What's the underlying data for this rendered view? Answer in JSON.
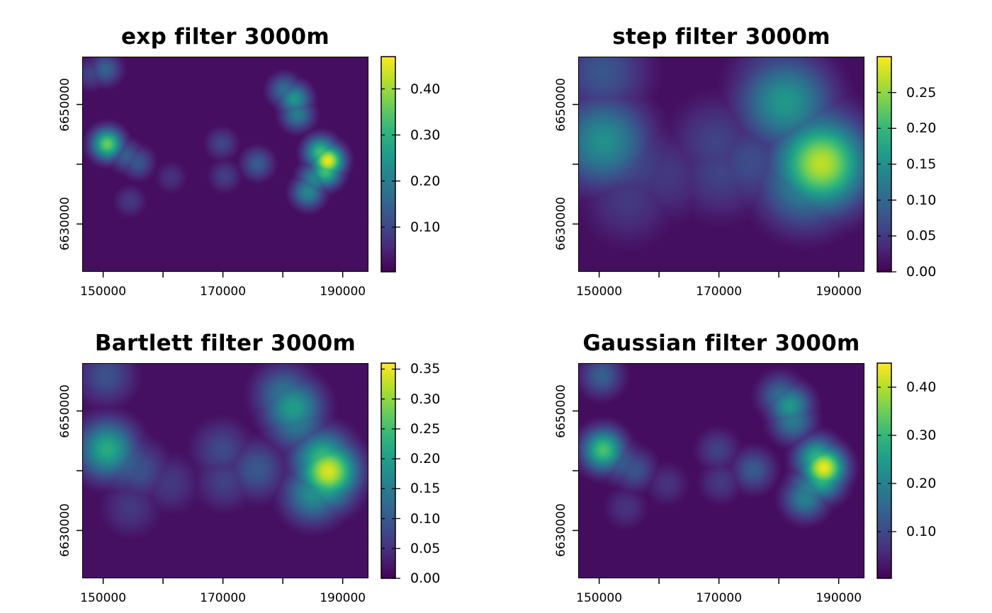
{
  "colors": {
    "viridis": [
      "#440154",
      "#482878",
      "#3e4a89",
      "#31688e",
      "#26828e",
      "#1f9e89",
      "#35b779",
      "#6ece58",
      "#b5de2b",
      "#fde725"
    ]
  },
  "chart_data": [
    {
      "type": "heatmap",
      "title": "exp filter 3000m",
      "x_ticks": [
        "150000",
        "170000",
        "190000"
      ],
      "x_tick_values": [
        150000,
        160000,
        170000,
        180000,
        190000
      ],
      "y_ticks": [
        "6630000",
        "6650000"
      ],
      "y_tick_values": [
        6630000,
        6640000,
        6650000
      ],
      "xlim": [
        146500,
        194300
      ],
      "ylim": [
        6622000,
        6658000
      ],
      "legend_ticks": [
        "0.40",
        "0.30",
        "0.20",
        "0.10"
      ],
      "legend_tick_values": [
        0.4,
        0.3,
        0.2,
        0.1
      ],
      "zlim": [
        0.003,
        0.47
      ],
      "sharpness": 1.0,
      "background_level": 0.02,
      "hotspots": [
        {
          "x": 187600,
          "y": 6640600,
          "value": 0.46
        },
        {
          "x": 186400,
          "y": 6642000,
          "value": 0.33
        },
        {
          "x": 187200,
          "y": 6638800,
          "value": 0.33
        },
        {
          "x": 185400,
          "y": 6637600,
          "value": 0.22
        },
        {
          "x": 184300,
          "y": 6635300,
          "value": 0.22
        },
        {
          "x": 182000,
          "y": 6651000,
          "value": 0.25
        },
        {
          "x": 180300,
          "y": 6652500,
          "value": 0.17
        },
        {
          "x": 182500,
          "y": 6648400,
          "value": 0.2
        },
        {
          "x": 150600,
          "y": 6643400,
          "value": 0.36
        },
        {
          "x": 153800,
          "y": 6641400,
          "value": 0.14
        },
        {
          "x": 155700,
          "y": 6640300,
          "value": 0.13
        },
        {
          "x": 150300,
          "y": 6656000,
          "value": 0.15
        },
        {
          "x": 147800,
          "y": 6655200,
          "value": 0.1
        },
        {
          "x": 175800,
          "y": 6640100,
          "value": 0.14
        },
        {
          "x": 169800,
          "y": 6643500,
          "value": 0.1
        },
        {
          "x": 170300,
          "y": 6638000,
          "value": 0.09
        },
        {
          "x": 161300,
          "y": 6637800,
          "value": 0.07
        },
        {
          "x": 154400,
          "y": 6633800,
          "value": 0.08
        }
      ]
    },
    {
      "type": "heatmap",
      "title": "step filter 3000m",
      "x_ticks": [
        "150000",
        "170000",
        "190000"
      ],
      "x_tick_values": [
        150000,
        160000,
        170000,
        180000,
        190000
      ],
      "y_ticks": [
        "6630000",
        "6650000"
      ],
      "y_tick_values": [
        6630000,
        6640000,
        6650000
      ],
      "xlim": [
        146500,
        194300
      ],
      "ylim": [
        6622000,
        6658000
      ],
      "legend_ticks": [
        "0.25",
        "0.20",
        "0.15",
        "0.10",
        "0.05",
        "0.00"
      ],
      "legend_tick_values": [
        0.25,
        0.2,
        0.15,
        0.1,
        0.05,
        0.0
      ],
      "zlim": [
        0.0,
        0.3
      ],
      "sharpness": 0.35,
      "background_level": 0.012,
      "hotspots": [
        {
          "x": 187200,
          "y": 6640100,
          "value": 0.27
        },
        {
          "x": 186500,
          "y": 6642300,
          "value": 0.17
        },
        {
          "x": 184500,
          "y": 6637000,
          "value": 0.14
        },
        {
          "x": 181200,
          "y": 6650400,
          "value": 0.16
        },
        {
          "x": 180300,
          "y": 6652500,
          "value": 0.1
        },
        {
          "x": 150600,
          "y": 6643800,
          "value": 0.15
        },
        {
          "x": 153500,
          "y": 6641400,
          "value": 0.08
        },
        {
          "x": 156300,
          "y": 6640000,
          "value": 0.06
        },
        {
          "x": 150500,
          "y": 6655500,
          "value": 0.08
        },
        {
          "x": 175400,
          "y": 6640300,
          "value": 0.07
        },
        {
          "x": 169600,
          "y": 6643600,
          "value": 0.06
        },
        {
          "x": 170400,
          "y": 6638600,
          "value": 0.06
        },
        {
          "x": 161200,
          "y": 6638200,
          "value": 0.05
        },
        {
          "x": 154800,
          "y": 6634000,
          "value": 0.05
        }
      ]
    },
    {
      "type": "heatmap",
      "title": "Bartlett filter 3000m",
      "x_ticks": [
        "150000",
        "170000",
        "190000"
      ],
      "x_tick_values": [
        150000,
        160000,
        170000,
        180000,
        190000
      ],
      "y_ticks": [
        "6630000",
        "6650000"
      ],
      "y_tick_values": [
        6630000,
        6640000,
        6650000
      ],
      "xlim": [
        146500,
        194300
      ],
      "ylim": [
        6622000,
        6658000
      ],
      "legend_ticks": [
        "0.35",
        "0.30",
        "0.25",
        "0.20",
        "0.15",
        "0.10",
        "0.05",
        "0.00"
      ],
      "legend_tick_values": [
        0.35,
        0.3,
        0.25,
        0.2,
        0.15,
        0.1,
        0.05,
        0.0
      ],
      "zlim": [
        0.0,
        0.36
      ],
      "sharpness": 0.55,
      "background_level": 0.015,
      "hotspots": [
        {
          "x": 187700,
          "y": 6639900,
          "value": 0.34
        },
        {
          "x": 186800,
          "y": 6641800,
          "value": 0.25
        },
        {
          "x": 187400,
          "y": 6638200,
          "value": 0.24
        },
        {
          "x": 185200,
          "y": 6636200,
          "value": 0.18
        },
        {
          "x": 181800,
          "y": 6650600,
          "value": 0.2
        },
        {
          "x": 180300,
          "y": 6652800,
          "value": 0.14
        },
        {
          "x": 182300,
          "y": 6648300,
          "value": 0.15
        },
        {
          "x": 150600,
          "y": 6643600,
          "value": 0.22
        },
        {
          "x": 153600,
          "y": 6641500,
          "value": 0.11
        },
        {
          "x": 156000,
          "y": 6640200,
          "value": 0.09
        },
        {
          "x": 150400,
          "y": 6656000,
          "value": 0.09
        },
        {
          "x": 175700,
          "y": 6640200,
          "value": 0.1
        },
        {
          "x": 169800,
          "y": 6643600,
          "value": 0.08
        },
        {
          "x": 170300,
          "y": 6638300,
          "value": 0.07
        },
        {
          "x": 161200,
          "y": 6637900,
          "value": 0.06
        },
        {
          "x": 154500,
          "y": 6633800,
          "value": 0.06
        }
      ]
    },
    {
      "type": "heatmap",
      "title": "Gaussian filter 3000m",
      "x_ticks": [
        "150000",
        "170000",
        "190000"
      ],
      "x_tick_values": [
        150000,
        160000,
        170000,
        180000,
        190000
      ],
      "y_ticks": [
        "6630000",
        "6650000"
      ],
      "y_tick_values": [
        6630000,
        6640000,
        6650000
      ],
      "xlim": [
        146500,
        194300
      ],
      "ylim": [
        6622000,
        6658000
      ],
      "legend_ticks": [
        "0.40",
        "0.30",
        "0.20",
        "0.10"
      ],
      "legend_tick_values": [
        0.4,
        0.3,
        0.2,
        0.1
      ],
      "zlim": [
        0.003,
        0.45
      ],
      "sharpness": 0.75,
      "background_level": 0.018,
      "hotspots": [
        {
          "x": 187600,
          "y": 6640500,
          "value": 0.44
        },
        {
          "x": 186500,
          "y": 6642000,
          "value": 0.3
        },
        {
          "x": 187300,
          "y": 6638700,
          "value": 0.3
        },
        {
          "x": 185300,
          "y": 6637000,
          "value": 0.2
        },
        {
          "x": 184500,
          "y": 6635400,
          "value": 0.2
        },
        {
          "x": 181900,
          "y": 6650900,
          "value": 0.24
        },
        {
          "x": 180300,
          "y": 6652600,
          "value": 0.16
        },
        {
          "x": 182400,
          "y": 6648400,
          "value": 0.19
        },
        {
          "x": 150600,
          "y": 6643500,
          "value": 0.32
        },
        {
          "x": 153700,
          "y": 6641400,
          "value": 0.13
        },
        {
          "x": 155800,
          "y": 6640200,
          "value": 0.12
        },
        {
          "x": 150300,
          "y": 6656000,
          "value": 0.14
        },
        {
          "x": 175800,
          "y": 6640100,
          "value": 0.13
        },
        {
          "x": 169800,
          "y": 6643500,
          "value": 0.09
        },
        {
          "x": 170300,
          "y": 6638100,
          "value": 0.08
        },
        {
          "x": 161300,
          "y": 6637800,
          "value": 0.07
        },
        {
          "x": 154400,
          "y": 6633800,
          "value": 0.07
        }
      ]
    }
  ]
}
